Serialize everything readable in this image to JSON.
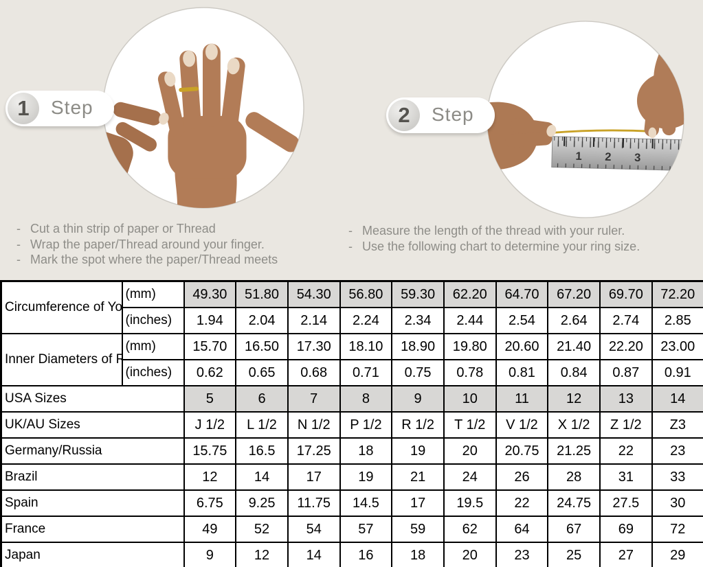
{
  "colors": {
    "background": "#eae7e1",
    "table_shaded_cell": "#d8d7d5",
    "table_border": "#000000",
    "gold_thread": "#c9a227",
    "instruction_text": "#8e8d88"
  },
  "steps": [
    {
      "badge_number": "1",
      "badge_label": "Step",
      "bullet": "-",
      "photo": "hand-with-thread-ring-photo",
      "instructions": [
        "Cut a thin strip of paper or Thread",
        "Wrap the paper/Thread around your finger.",
        "Mark the spot where the paper/Thread meets"
      ]
    },
    {
      "badge_number": "2",
      "badge_label": "Step",
      "bullet": "-",
      "photo": "measuring-thread-with-ruler-photo",
      "instructions": [
        "Measure the length of the thread with your ruler.",
        "Use the following chart to determine your ring size."
      ]
    }
  ],
  "ruler_numbers": [
    "1",
    "2",
    "3"
  ],
  "table": {
    "rows": [
      {
        "label": "Circumference of Your Finger",
        "rowspan": true,
        "unit": "(mm)",
        "shaded": true,
        "values": [
          "49.30",
          "51.80",
          "54.30",
          "56.80",
          "59.30",
          "62.20",
          "64.70",
          "67.20",
          "69.70",
          "72.20"
        ]
      },
      {
        "unit": "(inches)",
        "values": [
          "1.94",
          "2.04",
          "2.14",
          "2.24",
          "2.34",
          "2.44",
          "2.54",
          "2.64",
          "2.74",
          "2.85"
        ]
      },
      {
        "label": "Inner Diameters of Rings",
        "rowspan": true,
        "unit": "(mm)",
        "values": [
          "15.70",
          "16.50",
          "17.30",
          "18.10",
          "18.90",
          "19.80",
          "20.60",
          "21.40",
          "22.20",
          "23.00"
        ]
      },
      {
        "unit": "(inches)",
        "values": [
          "0.62",
          "0.65",
          "0.68",
          "0.71",
          "0.75",
          "0.78",
          "0.81",
          "0.84",
          "0.87",
          "0.91"
        ]
      },
      {
        "label": "USA Sizes",
        "colspan": true,
        "shaded": true,
        "values": [
          "5",
          "6",
          "7",
          "8",
          "9",
          "10",
          "11",
          "12",
          "13",
          "14"
        ]
      },
      {
        "label": "UK/AU Sizes",
        "colspan": true,
        "values": [
          "J 1/2",
          "L 1/2",
          "N 1/2",
          "P 1/2",
          "R 1/2",
          "T 1/2",
          "V 1/2",
          "X 1/2",
          "Z 1/2",
          "Z3"
        ]
      },
      {
        "label": "Germany/Russia",
        "colspan": true,
        "values": [
          "15.75",
          "16.5",
          "17.25",
          "18",
          "19",
          "20",
          "20.75",
          "21.25",
          "22",
          "23"
        ]
      },
      {
        "label": "Brazil",
        "colspan": true,
        "values": [
          "12",
          "14",
          "17",
          "19",
          "21",
          "24",
          "26",
          "28",
          "31",
          "33"
        ]
      },
      {
        "label": "Spain",
        "colspan": true,
        "values": [
          "6.75",
          "9.25",
          "11.75",
          "14.5",
          "17",
          "19.5",
          "22",
          "24.75",
          "27.5",
          "30"
        ]
      },
      {
        "label": "France",
        "colspan": true,
        "values": [
          "49",
          "52",
          "54",
          "57",
          "59",
          "62",
          "64",
          "67",
          "69",
          "72"
        ]
      },
      {
        "label": "Japan",
        "colspan": true,
        "values": [
          "9",
          "12",
          "14",
          "16",
          "18",
          "20",
          "23",
          "25",
          "27",
          "29"
        ]
      }
    ]
  }
}
